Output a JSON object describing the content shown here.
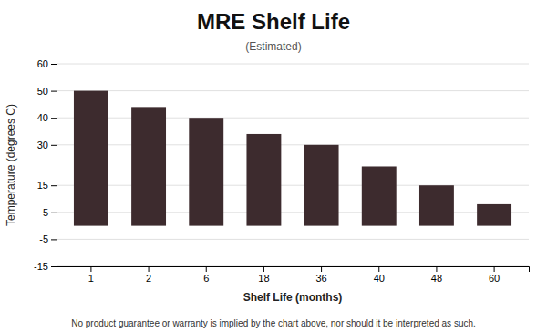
{
  "chart_data": {
    "type": "bar",
    "title": "MRE Shelf Life",
    "subtitle": "(Estimated)",
    "xlabel": "Shelf Life (months)",
    "ylabel": "Temperature (degrees C)",
    "footnote": "No product guarantee or warranty is implied by the chart above, nor should it be interpreted as such.",
    "categories": [
      "1",
      "2",
      "6",
      "18",
      "36",
      "40",
      "48",
      "60"
    ],
    "values": [
      50,
      44,
      40,
      34,
      30,
      22,
      15,
      8
    ],
    "color": "#3d2b2e",
    "ylim": [
      -15,
      60
    ],
    "yticks": [
      -15,
      -5,
      5,
      15,
      30,
      40,
      50,
      60
    ],
    "grid": true
  }
}
